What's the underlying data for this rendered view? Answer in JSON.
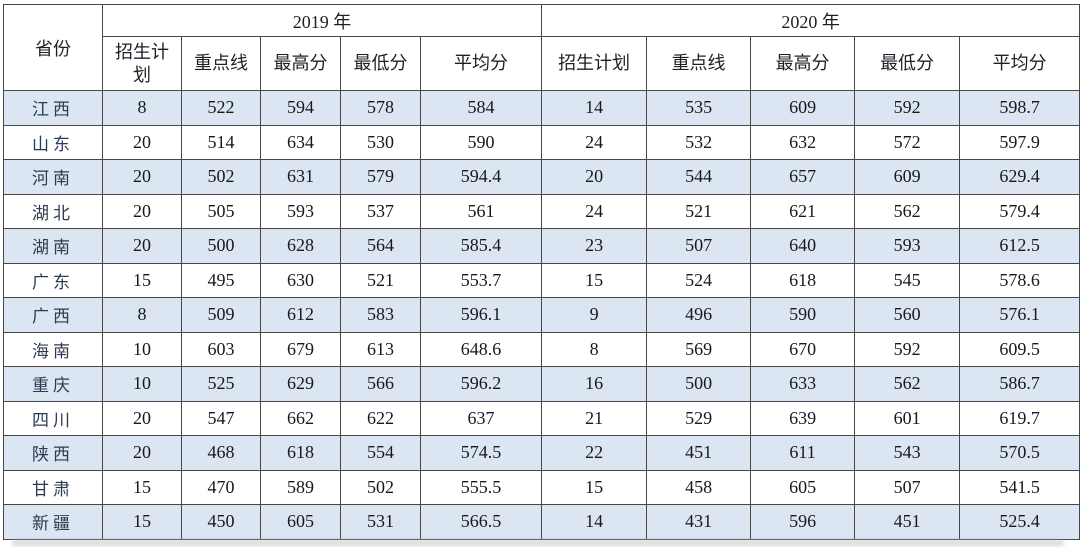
{
  "table": {
    "corner_header": "省份",
    "year_groups": [
      {
        "label": "2019 年",
        "columns": [
          "招生计划",
          "重点线",
          "最高分",
          "最低分",
          "平均分"
        ]
      },
      {
        "label": "2020 年",
        "columns": [
          "招生计划",
          "重点线",
          "最高分",
          "最低分",
          "平均分"
        ]
      }
    ],
    "rows": [
      {
        "province": "江西",
        "values_2019": [
          "8",
          "522",
          "594",
          "578",
          "584"
        ],
        "values_2020": [
          "14",
          "535",
          "609",
          "592",
          "598.7"
        ]
      },
      {
        "province": "山东",
        "values_2019": [
          "20",
          "514",
          "634",
          "530",
          "590"
        ],
        "values_2020": [
          "24",
          "532",
          "632",
          "572",
          "597.9"
        ]
      },
      {
        "province": "河南",
        "values_2019": [
          "20",
          "502",
          "631",
          "579",
          "594.4"
        ],
        "values_2020": [
          "20",
          "544",
          "657",
          "609",
          "629.4"
        ]
      },
      {
        "province": "湖北",
        "values_2019": [
          "20",
          "505",
          "593",
          "537",
          "561"
        ],
        "values_2020": [
          "24",
          "521",
          "621",
          "562",
          "579.4"
        ]
      },
      {
        "province": "湖南",
        "values_2019": [
          "20",
          "500",
          "628",
          "564",
          "585.4"
        ],
        "values_2020": [
          "23",
          "507",
          "640",
          "593",
          "612.5"
        ]
      },
      {
        "province": "广东",
        "values_2019": [
          "15",
          "495",
          "630",
          "521",
          "553.7"
        ],
        "values_2020": [
          "15",
          "524",
          "618",
          "545",
          "578.6"
        ]
      },
      {
        "province": "广西",
        "values_2019": [
          "8",
          "509",
          "612",
          "583",
          "596.1"
        ],
        "values_2020": [
          "9",
          "496",
          "590",
          "560",
          "576.1"
        ]
      },
      {
        "province": "海南",
        "values_2019": [
          "10",
          "603",
          "679",
          "613",
          "648.6"
        ],
        "values_2020": [
          "8",
          "569",
          "670",
          "592",
          "609.5"
        ]
      },
      {
        "province": "重庆",
        "values_2019": [
          "10",
          "525",
          "629",
          "566",
          "596.2"
        ],
        "values_2020": [
          "16",
          "500",
          "633",
          "562",
          "586.7"
        ]
      },
      {
        "province": "四川",
        "values_2019": [
          "20",
          "547",
          "662",
          "622",
          "637"
        ],
        "values_2020": [
          "21",
          "529",
          "639",
          "601",
          "619.7"
        ]
      },
      {
        "province": "陕西",
        "values_2019": [
          "20",
          "468",
          "618",
          "554",
          "574.5"
        ],
        "values_2020": [
          "22",
          "451",
          "611",
          "543",
          "570.5"
        ]
      },
      {
        "province": "甘肃",
        "values_2019": [
          "15",
          "470",
          "589",
          "502",
          "555.5"
        ],
        "values_2020": [
          "15",
          "458",
          "605",
          "507",
          "541.5"
        ]
      },
      {
        "province": "新疆",
        "values_2019": [
          "15",
          "450",
          "605",
          "531",
          "566.5"
        ],
        "values_2020": [
          "14",
          "431",
          "596",
          "451",
          "525.4"
        ]
      }
    ]
  },
  "colors": {
    "stripe_row": "#dbe6f2",
    "plain_row": "#ffffff",
    "border": "#474747",
    "header_text": "#1f1f28",
    "province_text": "#2c3b52",
    "number_text": "#181820"
  }
}
